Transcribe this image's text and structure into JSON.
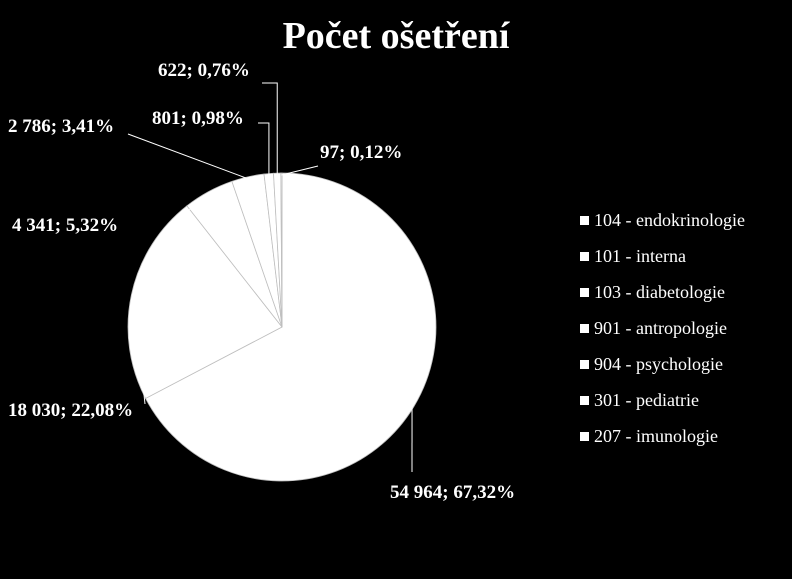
{
  "chart_data": {
    "type": "pie",
    "title": "Počet ošetření",
    "legend_position": "right",
    "slices": [
      {
        "name": "104 - endokrinologie",
        "value": 54964,
        "label": "54 964; 67,32%",
        "color": "#ffffff"
      },
      {
        "name": "101 - interna",
        "value": 18030,
        "label": "18 030; 22,08%",
        "color": "#ffffff"
      },
      {
        "name": "103 - diabetologie",
        "value": 4341,
        "label": "4 341; 5,32%",
        "color": "#ffffff"
      },
      {
        "name": "901 - antropologie",
        "value": 2786,
        "label": "2 786; 3,41%",
        "color": "#ffffff"
      },
      {
        "name": "904 - psychologie",
        "value": 801,
        "label": "801; 0,98%",
        "color": "#ffffff"
      },
      {
        "name": "301 - pediatrie",
        "value": 622,
        "label": "622; 0,76%",
        "color": "#ffffff"
      },
      {
        "name": "207 - imunologie",
        "value": 97,
        "label": "97; 0,12%",
        "color": "#ffffff"
      }
    ]
  }
}
